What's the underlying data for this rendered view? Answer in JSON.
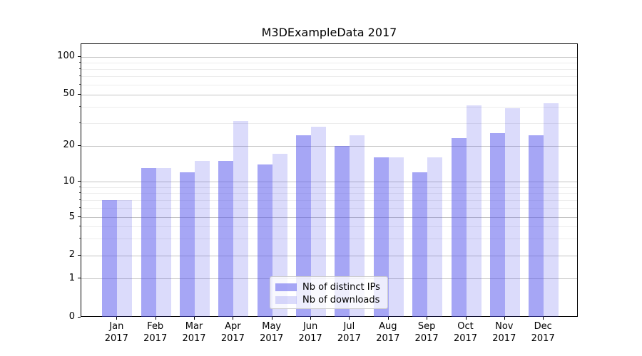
{
  "title": "M3DExampleData 2017",
  "legend": {
    "items": [
      {
        "label": "Nb of distinct IPs",
        "color": "#a6a6f5"
      },
      {
        "label": "Nb of downloads",
        "color": "#dbdbfb"
      }
    ]
  },
  "axes": {
    "y_tick_labels": [
      "100",
      "50",
      "20",
      "10",
      "5",
      "2",
      "1",
      "0"
    ]
  },
  "chart_data": {
    "type": "bar",
    "title": "M3DExampleData 2017",
    "categories": [
      "Jan 2017",
      "Feb 2017",
      "Mar 2017",
      "Apr 2017",
      "May 2017",
      "Jun 2017",
      "Jul 2017",
      "Aug 2017",
      "Sep 2017",
      "Oct 2017",
      "Nov 2017",
      "Dec 2017"
    ],
    "series": [
      {
        "name": "Nb of distinct IPs",
        "color": "#a6a6f5",
        "fill": "rgba(77,77,235,0.50)",
        "values": [
          7,
          13,
          12,
          15,
          14,
          24,
          20,
          16,
          12,
          23,
          25,
          24
        ]
      },
      {
        "name": "Nb of downloads",
        "color": "#dbdbfb",
        "fill": "rgba(77,77,235,0.20)",
        "values": [
          7,
          13,
          15,
          31,
          17,
          28,
          24,
          16,
          16,
          41,
          39,
          43
        ]
      }
    ],
    "xlabel": "",
    "ylabel": "",
    "yscale": "symlog",
    "yticks": [
      0,
      1,
      2,
      5,
      10,
      20,
      50,
      100
    ],
    "yticks_minor": [
      3,
      4,
      6,
      7,
      8,
      9,
      30,
      40,
      60,
      70,
      80,
      90
    ],
    "ylim": [
      0,
      126
    ],
    "grid": true,
    "legend_position": "lower center"
  }
}
